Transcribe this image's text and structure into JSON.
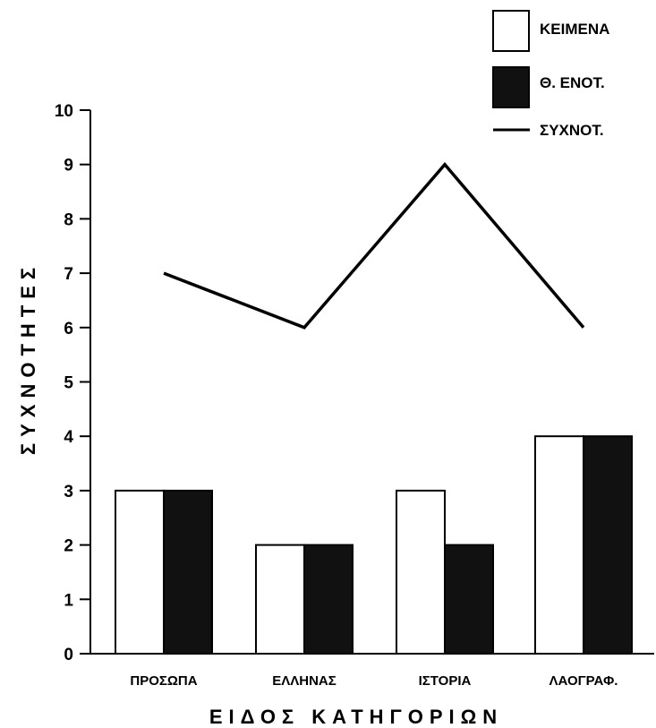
{
  "chart_data": {
    "type": "bar",
    "categories": [
      "ΠΡΟΣΩΠΑ",
      "ΕΛΛΗΝΑΣ",
      "ΙΣΤΟΡΙΑ",
      "ΛΑΟΓΡΑΦ."
    ],
    "series": [
      {
        "name": "ΚΕΙΜΕΝΑ",
        "kind": "bar",
        "color": "#ffffff",
        "values": [
          3,
          2,
          3,
          4
        ]
      },
      {
        "name": "Θ. ΕΝΟΤ.",
        "kind": "bar",
        "color": "#111111",
        "values": [
          3,
          2,
          2,
          4
        ]
      },
      {
        "name": "ΣΥΧΝΟΤ.",
        "kind": "line",
        "color": "#000000",
        "values": [
          7,
          6,
          9,
          6
        ]
      }
    ],
    "xlabel": "ΕΙΔΟΣ ΚΑΤΗΓΟΡΙΩΝ",
    "ylabel": "ΣΥΧΝΟΤΗΤΕΣ",
    "ylim": [
      0,
      10
    ],
    "yticks": [
      0,
      1,
      2,
      3,
      4,
      5,
      6,
      7,
      8,
      9,
      10
    ],
    "grid": false,
    "legend_position": "top-right"
  }
}
